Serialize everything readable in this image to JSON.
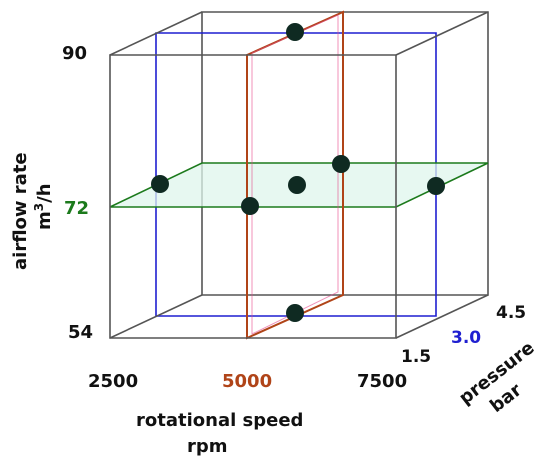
{
  "colors": {
    "frame": "#555555",
    "pressure_plane": "#1f1fd0",
    "speed_plane": "#b04418",
    "speed_plane_inner": "#e64a8c",
    "airflow_plane": "#1c7a1c",
    "airflow_fill": "#dff5ec",
    "point": "#0f2a22"
  },
  "y_axis": {
    "title_line1": "airflow rate",
    "title_line2_base": "m",
    "title_line2_sup": "3",
    "title_line2_tail": "/h",
    "ticks": [
      "90",
      "72",
      "54"
    ]
  },
  "x_axis": {
    "title_line1": "rotational speed",
    "title_line2": "rpm",
    "ticks": [
      "2500",
      "5000",
      "7500"
    ]
  },
  "z_axis": {
    "title_line1": "pressure",
    "title_line2": "bar",
    "ticks": [
      "4.5",
      "3.0",
      "1.5"
    ]
  },
  "center_points": {
    "airflow": "72",
    "speed": "5000",
    "pressure": "3.0"
  },
  "design_points": [
    {
      "rpm": 5000,
      "bar": 3.0,
      "airflow": 90
    },
    {
      "rpm": 5000,
      "bar": 3.0,
      "airflow": 54
    },
    {
      "rpm": 2500,
      "bar": 3.0,
      "airflow": 72
    },
    {
      "rpm": 7500,
      "bar": 3.0,
      "airflow": 72
    },
    {
      "rpm": 5000,
      "bar": 1.5,
      "airflow": 72
    },
    {
      "rpm": 5000,
      "bar": 4.5,
      "airflow": 72
    },
    {
      "rpm": 5000,
      "bar": 3.0,
      "airflow": 72
    }
  ]
}
